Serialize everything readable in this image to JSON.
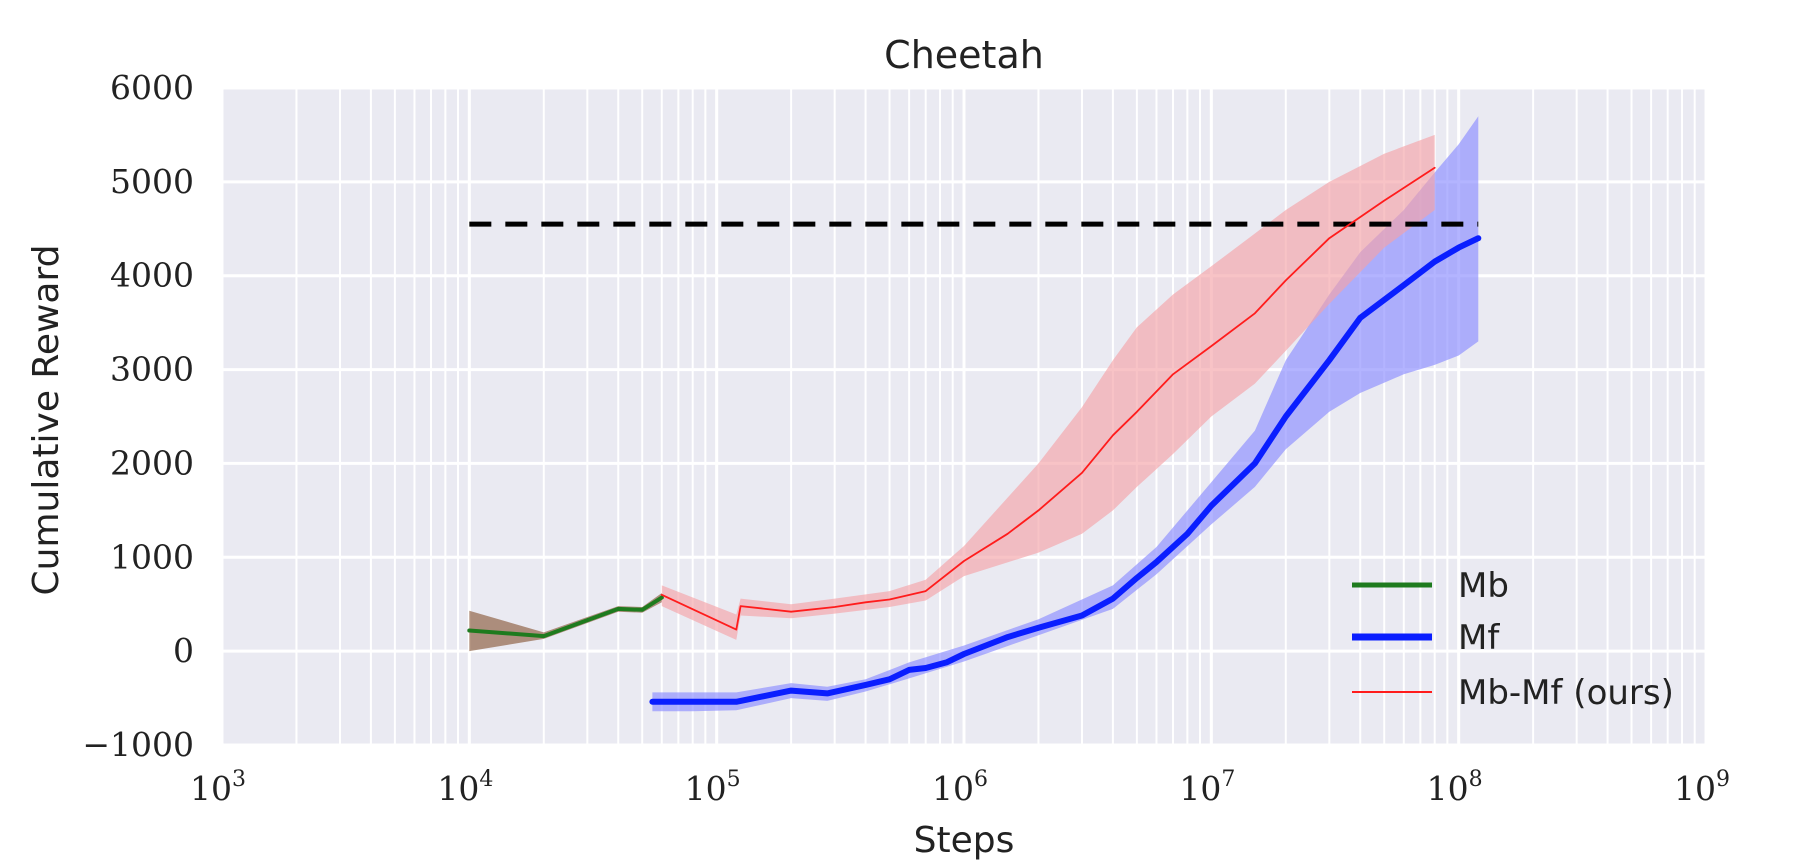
{
  "chart_data": {
    "type": "line",
    "title": "Cheetah",
    "xlabel": "Steps",
    "ylabel": "Cumulative Reward",
    "xscale": "log",
    "xlim": [
      1000,
      1000000000
    ],
    "ylim": [
      -1000,
      6000
    ],
    "x_ticks": [
      {
        "base": "10",
        "exp": "3",
        "value": 1000
      },
      {
        "base": "10",
        "exp": "4",
        "value": 10000
      },
      {
        "base": "10",
        "exp": "5",
        "value": 100000
      },
      {
        "base": "10",
        "exp": "6",
        "value": 1000000
      },
      {
        "base": "10",
        "exp": "7",
        "value": 10000000
      },
      {
        "base": "10",
        "exp": "8",
        "value": 100000000
      },
      {
        "base": "10",
        "exp": "9",
        "value": 1000000000
      }
    ],
    "y_ticks": [
      "−1000",
      "0",
      "1000",
      "2000",
      "3000",
      "4000",
      "5000",
      "6000"
    ],
    "grid": true,
    "legend_position": "bottom-right",
    "reference_line": {
      "y": 4550,
      "x_range": [
        10000,
        120000000
      ],
      "style": "dashed",
      "color": "#000000"
    },
    "series": [
      {
        "name": "Mb",
        "color": "#1e7b1e",
        "band_color": "#8b5a3c",
        "points": [
          [
            10000,
            220
          ],
          [
            20000,
            160
          ],
          [
            40000,
            450
          ],
          [
            50000,
            440
          ],
          [
            60000,
            570
          ]
        ],
        "band": [
          [
            10000,
            0,
            430
          ],
          [
            20000,
            130,
            200
          ],
          [
            40000,
            420,
            480
          ],
          [
            50000,
            410,
            470
          ],
          [
            60000,
            520,
            620
          ]
        ]
      },
      {
        "name": "Mf",
        "color": "#0a1eff",
        "band_color": "#8a8cff",
        "points": [
          [
            55000,
            -540
          ],
          [
            80000,
            -540
          ],
          [
            120000,
            -540
          ],
          [
            200000,
            -420
          ],
          [
            280000,
            -450
          ],
          [
            400000,
            -360
          ],
          [
            500000,
            -300
          ],
          [
            600000,
            -200
          ],
          [
            700000,
            -180
          ],
          [
            850000,
            -120
          ],
          [
            1000000,
            -30
          ],
          [
            1500000,
            150
          ],
          [
            2000000,
            250
          ],
          [
            3000000,
            380
          ],
          [
            4000000,
            560
          ],
          [
            5000000,
            780
          ],
          [
            6000000,
            950
          ],
          [
            8000000,
            1250
          ],
          [
            10000000,
            1550
          ],
          [
            15000000,
            2000
          ],
          [
            20000000,
            2500
          ],
          [
            30000000,
            3100
          ],
          [
            40000000,
            3550
          ],
          [
            60000000,
            3900
          ],
          [
            80000000,
            4150
          ],
          [
            100000000,
            4300
          ],
          [
            120000000,
            4400
          ]
        ],
        "band": [
          [
            55000,
            -640,
            -440
          ],
          [
            80000,
            -640,
            -440
          ],
          [
            120000,
            -630,
            -440
          ],
          [
            200000,
            -500,
            -340
          ],
          [
            280000,
            -530,
            -380
          ],
          [
            400000,
            -430,
            -300
          ],
          [
            600000,
            -290,
            -120
          ],
          [
            1000000,
            -110,
            60
          ],
          [
            2000000,
            170,
            340
          ],
          [
            4000000,
            450,
            700
          ],
          [
            6000000,
            820,
            1110
          ],
          [
            10000000,
            1350,
            1800
          ],
          [
            15000000,
            1750,
            2350
          ],
          [
            20000000,
            2150,
            3100
          ],
          [
            30000000,
            2550,
            3800
          ],
          [
            40000000,
            2750,
            4250
          ],
          [
            60000000,
            2950,
            4700
          ],
          [
            80000000,
            3050,
            5100
          ],
          [
            100000000,
            3150,
            5400
          ],
          [
            120000000,
            3300,
            5700
          ]
        ]
      },
      {
        "name": "Mb-Mf (ours)",
        "color": "#ff1c1c",
        "band_color": "#f4a3a8",
        "points": [
          [
            60000,
            600
          ],
          [
            120000,
            230
          ],
          [
            125000,
            480
          ],
          [
            200000,
            420
          ],
          [
            300000,
            470
          ],
          [
            400000,
            520
          ],
          [
            500000,
            550
          ],
          [
            700000,
            640
          ],
          [
            1000000,
            960
          ],
          [
            1500000,
            1250
          ],
          [
            2000000,
            1500
          ],
          [
            3000000,
            1900
          ],
          [
            4000000,
            2300
          ],
          [
            5000000,
            2550
          ],
          [
            7000000,
            2950
          ],
          [
            10000000,
            3250
          ],
          [
            15000000,
            3600
          ],
          [
            20000000,
            3950
          ],
          [
            30000000,
            4400
          ],
          [
            50000000,
            4800
          ],
          [
            80000000,
            5150
          ]
        ],
        "band": [
          [
            60000,
            480,
            700
          ],
          [
            120000,
            120,
            390
          ],
          [
            125000,
            380,
            560
          ],
          [
            200000,
            350,
            500
          ],
          [
            300000,
            400,
            560
          ],
          [
            500000,
            470,
            640
          ],
          [
            700000,
            540,
            760
          ],
          [
            1000000,
            800,
            1120
          ],
          [
            2000000,
            1050,
            2000
          ],
          [
            3000000,
            1250,
            2600
          ],
          [
            4000000,
            1500,
            3100
          ],
          [
            5000000,
            1750,
            3450
          ],
          [
            7000000,
            2100,
            3800
          ],
          [
            10000000,
            2500,
            4100
          ],
          [
            15000000,
            2850,
            4450
          ],
          [
            20000000,
            3200,
            4700
          ],
          [
            30000000,
            3700,
            5000
          ],
          [
            50000000,
            4300,
            5300
          ],
          [
            80000000,
            4700,
            5500
          ]
        ]
      }
    ]
  }
}
